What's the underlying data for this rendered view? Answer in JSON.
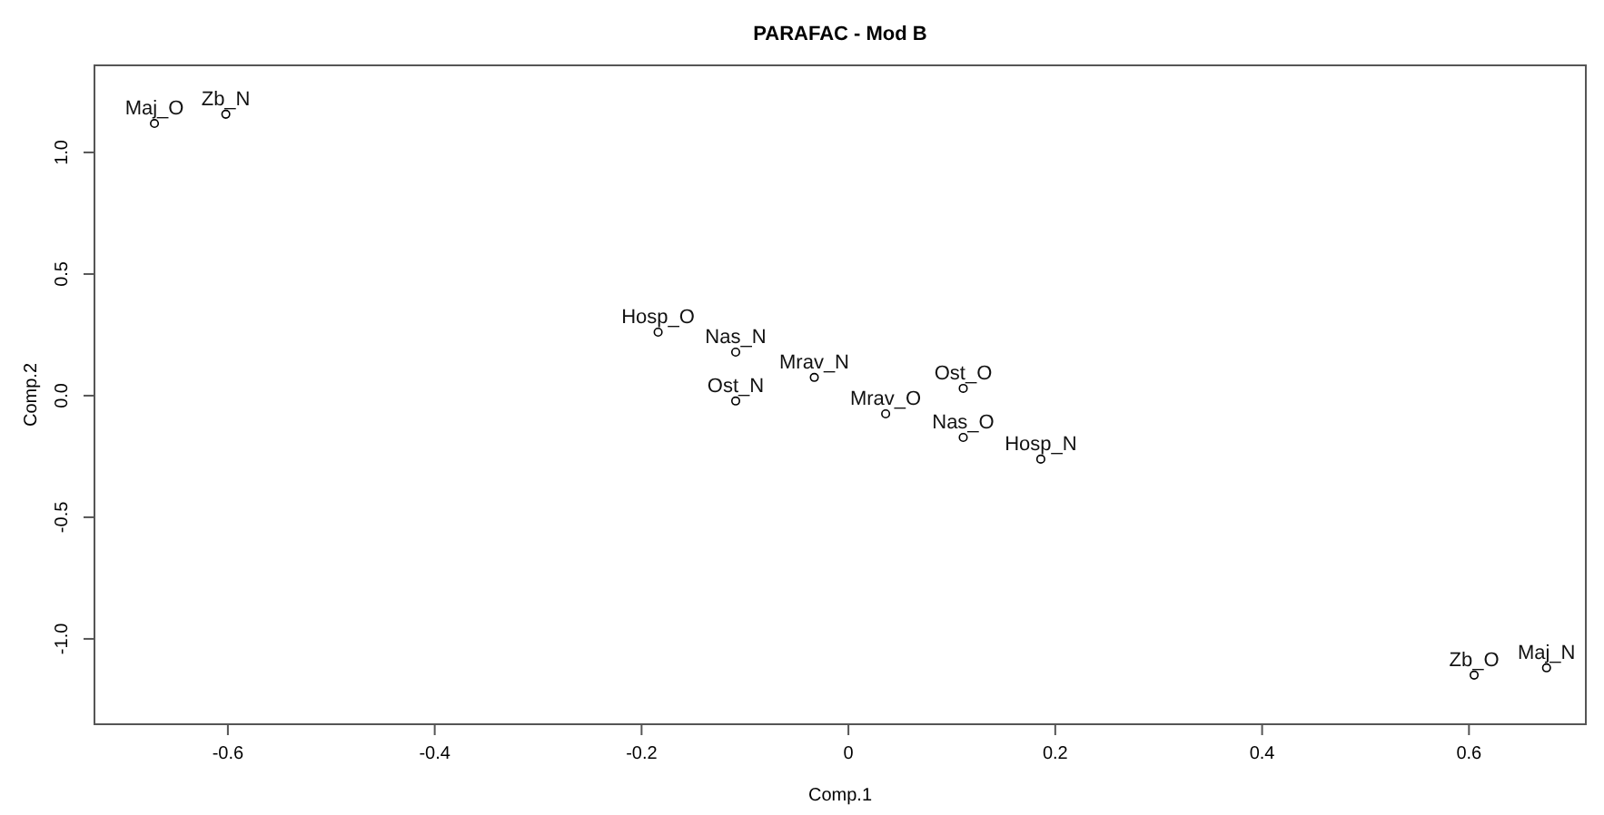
{
  "chart_data": {
    "type": "scatter",
    "title": "PARAFAC - Mod B",
    "xlabel": "Comp.1",
    "ylabel": "Comp.2",
    "xlim": [
      -0.729,
      0.713
    ],
    "ylim": [
      -1.351,
      1.358
    ],
    "xticks": [
      -0.6,
      -0.4,
      -0.2,
      0,
      0.2,
      0.4,
      0.6
    ],
    "yticks": [
      {
        "value": -1,
        "label": "-1.0"
      },
      -0.5,
      {
        "value": 0,
        "label": "0.0"
      },
      0.5,
      {
        "value": 1,
        "label": "1.0"
      }
    ],
    "marker": "circle",
    "series": [
      {
        "color": "#000000",
        "x": [
          -0.671,
          -0.602,
          -0.184,
          -0.109,
          -0.109,
          -0.033,
          0.036,
          0.111,
          0.111,
          0.186,
          0.605,
          0.675
        ],
        "values": [
          1.119,
          1.157,
          0.261,
          0.179,
          -0.022,
          0.075,
          -0.075,
          0.03,
          -0.172,
          -0.261,
          -1.149,
          -1.119
        ]
      }
    ],
    "annotations": [
      {
        "text": "Maj_O",
        "x": -0.671,
        "y": 1.119
      },
      {
        "text": "Zb_N",
        "x": -0.602,
        "y": 1.157
      },
      {
        "text": "Hosp_O",
        "x": -0.184,
        "y": 0.261
      },
      {
        "text": "Nas_N",
        "x": -0.109,
        "y": 0.179
      },
      {
        "text": "Ost_N",
        "x": -0.109,
        "y": -0.022
      },
      {
        "text": "Mrav_N",
        "x": -0.033,
        "y": 0.075
      },
      {
        "text": "Mrav_O",
        "x": 0.036,
        "y": -0.075
      },
      {
        "text": "Ost_O",
        "x": 0.111,
        "y": 0.03
      },
      {
        "text": "Nas_O",
        "x": 0.111,
        "y": -0.172
      },
      {
        "text": "Hosp_N",
        "x": 0.186,
        "y": -0.261
      },
      {
        "text": "Zb_O",
        "x": 0.605,
        "y": -1.149
      },
      {
        "text": "Maj_N",
        "x": 0.675,
        "y": -1.119
      }
    ]
  }
}
